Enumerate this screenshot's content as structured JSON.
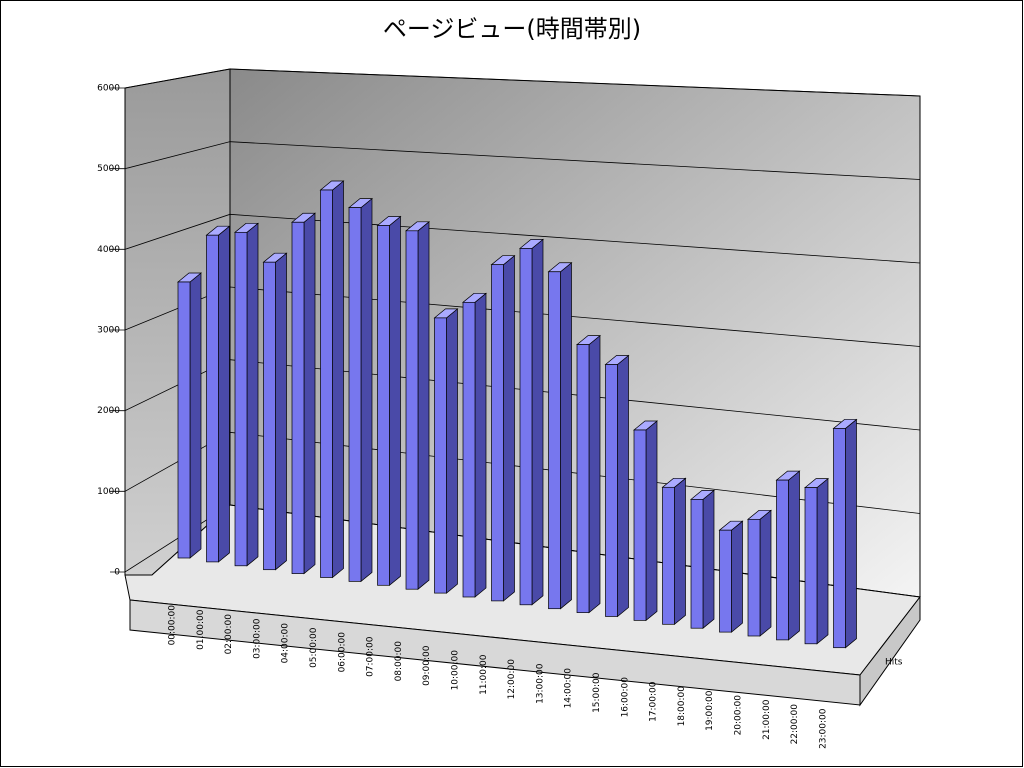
{
  "chart_data": {
    "type": "bar3d",
    "title": "ページビュー(時間帯別)",
    "categories": [
      "00:00:00",
      "01:00:00",
      "02:00:00",
      "03:00:00",
      "04:00:00",
      "05:00:00",
      "06:00:00",
      "07:00:00",
      "08:00:00",
      "09:00:00",
      "10:00:00",
      "11:00:00",
      "12:00:00",
      "13:00:00",
      "14:00:00",
      "15:00:00",
      "16:00:00",
      "17:00:00",
      "18:00:00",
      "19:00:00",
      "20:00:00",
      "21:00:00",
      "22:00:00",
      "23:00:00"
    ],
    "series": [
      {
        "name": "Hits",
        "color": "#7777ee",
        "values": [
          3450,
          4050,
          4100,
          3750,
          4250,
          4650,
          4450,
          4250,
          4200,
          3200,
          3400,
          3850,
          4050,
          3800,
          3000,
          2800,
          2100,
          1500,
          1400,
          1100,
          1250,
          1700,
          1650,
          2300
        ]
      }
    ],
    "ylim": [
      0,
      6000
    ],
    "yticks": [
      0,
      1000,
      2000,
      3000,
      4000,
      5000,
      6000
    ],
    "grid": true
  }
}
